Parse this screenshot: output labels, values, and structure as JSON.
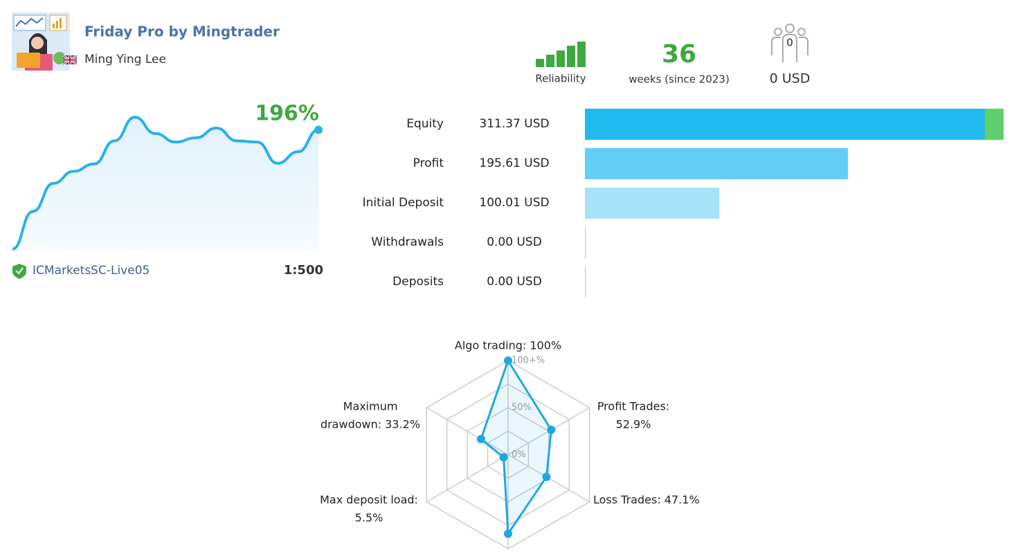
{
  "header": {
    "title": "Friday Pro by Mingtrader",
    "author": "Ming Ying Lee",
    "reliability_label": "Reliability",
    "weeks": 36,
    "weeks_label": "weeks (since 2023)",
    "subscribers": 0,
    "subscribers_funds": "0 USD"
  },
  "chart_data": [
    {
      "type": "line",
      "growth_label": "196%",
      "values": [
        0,
        62,
        108,
        128,
        140,
        178,
        217,
        190,
        176,
        183,
        199,
        178,
        176,
        141,
        160,
        196
      ],
      "ylim": [
        0,
        232
      ],
      "color": "#29b1e8",
      "broker": "ICMarketsSC-Live05",
      "leverage": "1:500"
    },
    {
      "type": "hbar",
      "categories": [
        "Equity",
        "Profit",
        "Initial Deposit",
        "Withdrawals",
        "Deposits"
      ],
      "values": [
        311.37,
        195.61,
        100.01,
        0,
        0
      ],
      "value_labels": [
        "311.37 USD",
        "195.61 USD",
        "100.01 USD",
        "0.00 USD",
        "0.00 USD"
      ],
      "colors": [
        "#21b9f0",
        "#63cdf5",
        "#a8e2f7",
        "#a8e2f7",
        "#a8e2f7"
      ],
      "xlim": [
        0,
        312
      ],
      "equity_gain": 14,
      "gain_color": "#5fcf6d"
    },
    {
      "type": "radar",
      "label_lines": [
        [
          "Algo trading: 100%"
        ],
        [
          "Profit Trades:",
          "52.9%"
        ],
        [
          "Loss Trades: 47.1%"
        ],
        null,
        [
          "Max deposit load:",
          "5.5%"
        ],
        [
          "Maximum",
          "drawdown: 33.2%"
        ]
      ],
      "values": [
        100,
        52.9,
        47.1,
        84,
        5.5,
        33.2
      ],
      "rlim": [
        0,
        100
      ],
      "rticks": [
        {
          "value": 0,
          "label": "0%"
        },
        {
          "value": 25,
          "label": null
        },
        {
          "value": 50,
          "label": "50%"
        },
        {
          "value": 75,
          "label": null
        },
        {
          "value": 100,
          "label": "100+%"
        }
      ],
      "color": "#1fa8e0"
    }
  ]
}
